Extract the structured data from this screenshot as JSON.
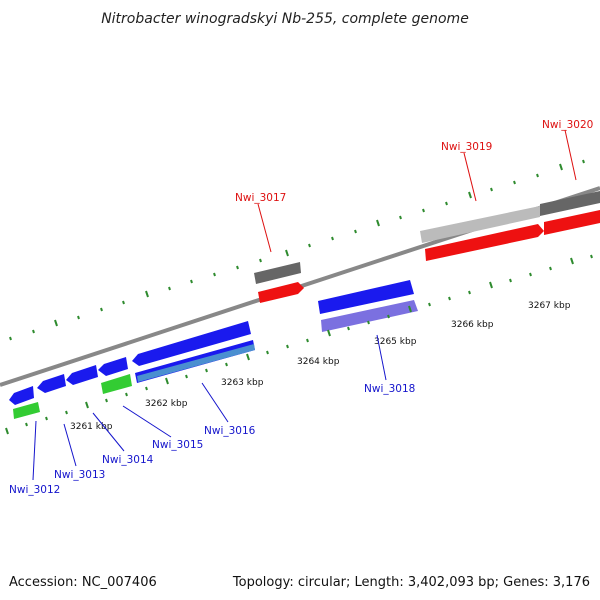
{
  "title": "Nitrobacter winogradskyi Nb-255, complete genome",
  "footer": {
    "accession": "Accession: NC_007406",
    "summary": "Topology: circular; Length: 3,402,093 bp; Genes: 3,176"
  },
  "colors": {
    "forward_cds": "#1a1aee",
    "reverse_cds": "#ee1111",
    "rna": "#33cc33",
    "hypothetical": "#666666",
    "light_gray": "#bbbbbb",
    "purple": "#7b70e0",
    "teal": "#4a8fd0",
    "backbone": "#888888",
    "tick": "#2e8b2e",
    "label_forward": "#1515cc",
    "label_reverse": "#dd1111"
  },
  "scale": {
    "unit": "kbp",
    "labels": [
      "3261 kbp",
      "3262 kbp",
      "3263 kbp",
      "3264 kbp",
      "3265 kbp",
      "3266 kbp",
      "3267 kbp"
    ]
  },
  "gene_labels": {
    "forward": [
      "Nwi_3012",
      "Nwi_3013",
      "Nwi_3014",
      "Nwi_3015",
      "Nwi_3016",
      "Nwi_3018"
    ],
    "reverse": [
      "Nwi_3017",
      "Nwi_3019",
      "Nwi_3020"
    ]
  }
}
